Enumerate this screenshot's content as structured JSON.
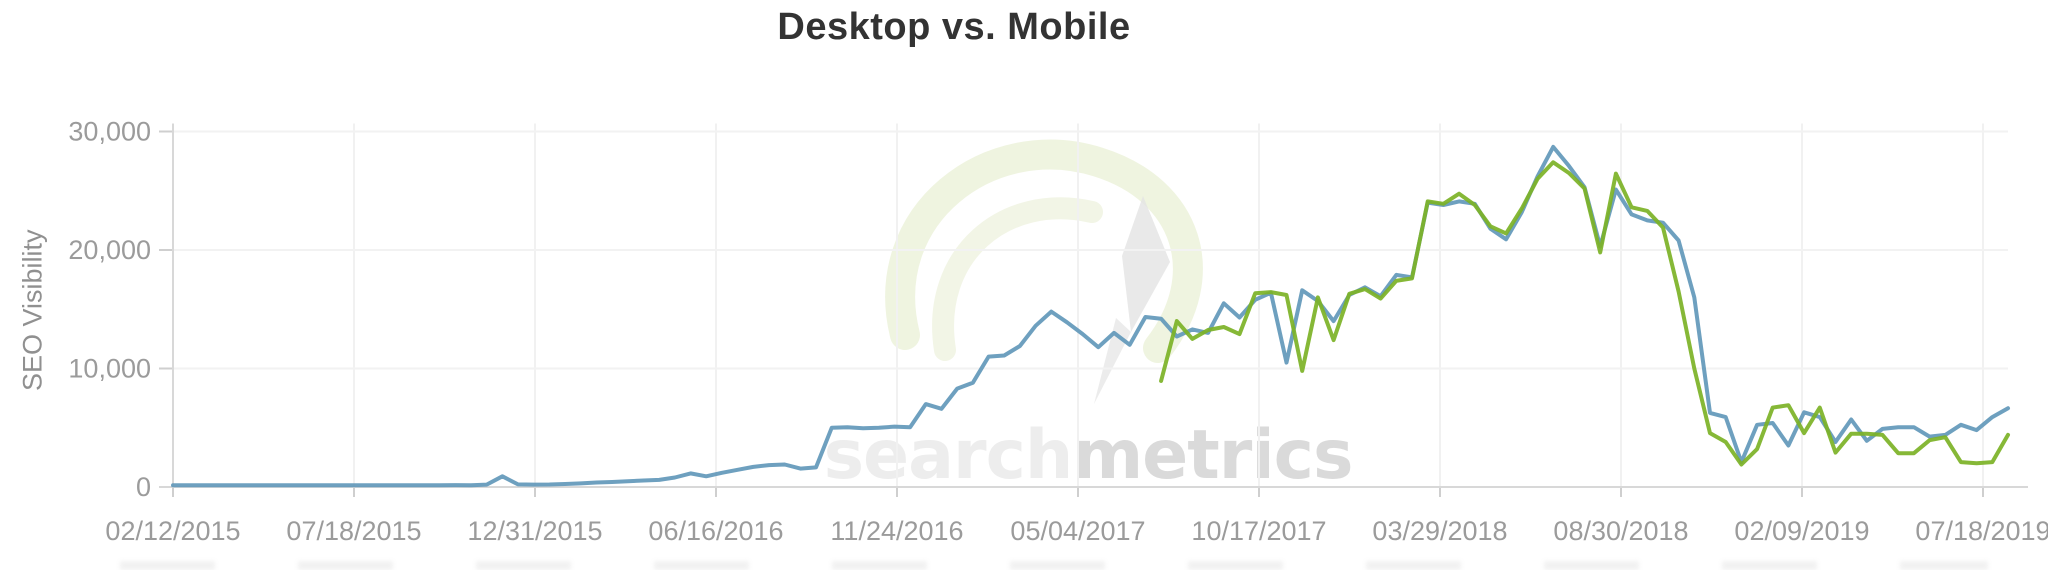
{
  "page": {
    "title": "Desktop vs. Mobile"
  },
  "chart_data": {
    "type": "line",
    "title": "Desktop vs. Mobile",
    "xlabel": "",
    "ylabel": "SEO Visibility",
    "ylim": [
      0,
      30000
    ],
    "grid": true,
    "legend_position": "none",
    "x_tick_labels": [
      "02/12/2015",
      "07/18/2015",
      "12/31/2015",
      "06/16/2016",
      "11/24/2016",
      "05/04/2017",
      "10/17/2017",
      "03/29/2018",
      "08/30/2018",
      "02/09/2019",
      "07/18/2019"
    ],
    "y_ticks": [
      {
        "value": 0,
        "label": "0"
      },
      {
        "value": 10000,
        "label": "10,000"
      },
      {
        "value": 20000,
        "label": "20,000"
      },
      {
        "value": 30000,
        "label": "30,000"
      }
    ],
    "series": [
      {
        "name": "Desktop",
        "color": "#6298ba",
        "values": [
          150,
          150,
          140,
          150,
          150,
          140,
          150,
          150,
          150,
          140,
          150,
          150,
          140,
          150,
          150,
          150,
          140,
          150,
          160,
          150,
          200,
          900,
          220,
          200,
          210,
          250,
          300,
          380,
          420,
          480,
          550,
          600,
          800,
          1150,
          900,
          1200,
          1450,
          1700,
          1850,
          1900,
          1550,
          1650,
          5000,
          5050,
          4950,
          5000,
          5100,
          5050,
          7000,
          6600,
          8300,
          8800,
          11000,
          11100,
          11900,
          13600,
          14800,
          13900,
          12900,
          11800,
          13000,
          12000,
          14350,
          14200,
          12700,
          13300,
          13000,
          15500,
          14300,
          15800,
          16400,
          10500,
          16600,
          15700,
          14000,
          16200,
          16850,
          16100,
          17900,
          17700,
          24000,
          23800,
          24100,
          23900,
          21800,
          20900,
          23200,
          26200,
          28700,
          27100,
          25300,
          20300,
          25100,
          23000,
          22500,
          22300,
          20800,
          16000,
          6250,
          5900,
          2100,
          5250,
          5400,
          3500,
          6300,
          5900,
          3800,
          5700,
          3900,
          4900,
          5050,
          5050,
          4250,
          4400,
          5250,
          4800,
          5900,
          6650
        ]
      },
      {
        "name": "Mobile",
        "color": "#7cb226",
        "values": [
          null,
          null,
          null,
          null,
          null,
          null,
          null,
          null,
          null,
          null,
          null,
          null,
          null,
          null,
          null,
          null,
          null,
          null,
          null,
          null,
          null,
          null,
          null,
          null,
          null,
          null,
          null,
          null,
          null,
          null,
          null,
          null,
          null,
          null,
          null,
          null,
          null,
          null,
          null,
          null,
          null,
          null,
          null,
          null,
          null,
          null,
          null,
          null,
          null,
          null,
          null,
          null,
          null,
          null,
          null,
          null,
          null,
          null,
          null,
          null,
          null,
          null,
          null,
          8950,
          14000,
          12500,
          13250,
          13500,
          12900,
          16350,
          16450,
          16200,
          9800,
          16000,
          12400,
          16300,
          16700,
          15900,
          17400,
          17600,
          24100,
          23900,
          24750,
          23800,
          22000,
          21400,
          23500,
          26000,
          27400,
          26500,
          25200,
          19800,
          26450,
          23600,
          23300,
          21900,
          16500,
          10000,
          4550,
          3800,
          1900,
          3200,
          6700,
          6900,
          4550,
          6700,
          2900,
          4500,
          4500,
          4400,
          2850,
          2850,
          3950,
          4200,
          2100,
          2000,
          2100,
          4400
        ]
      }
    ],
    "watermark": {
      "text_light": "search",
      "text_dark": "metrics"
    }
  }
}
